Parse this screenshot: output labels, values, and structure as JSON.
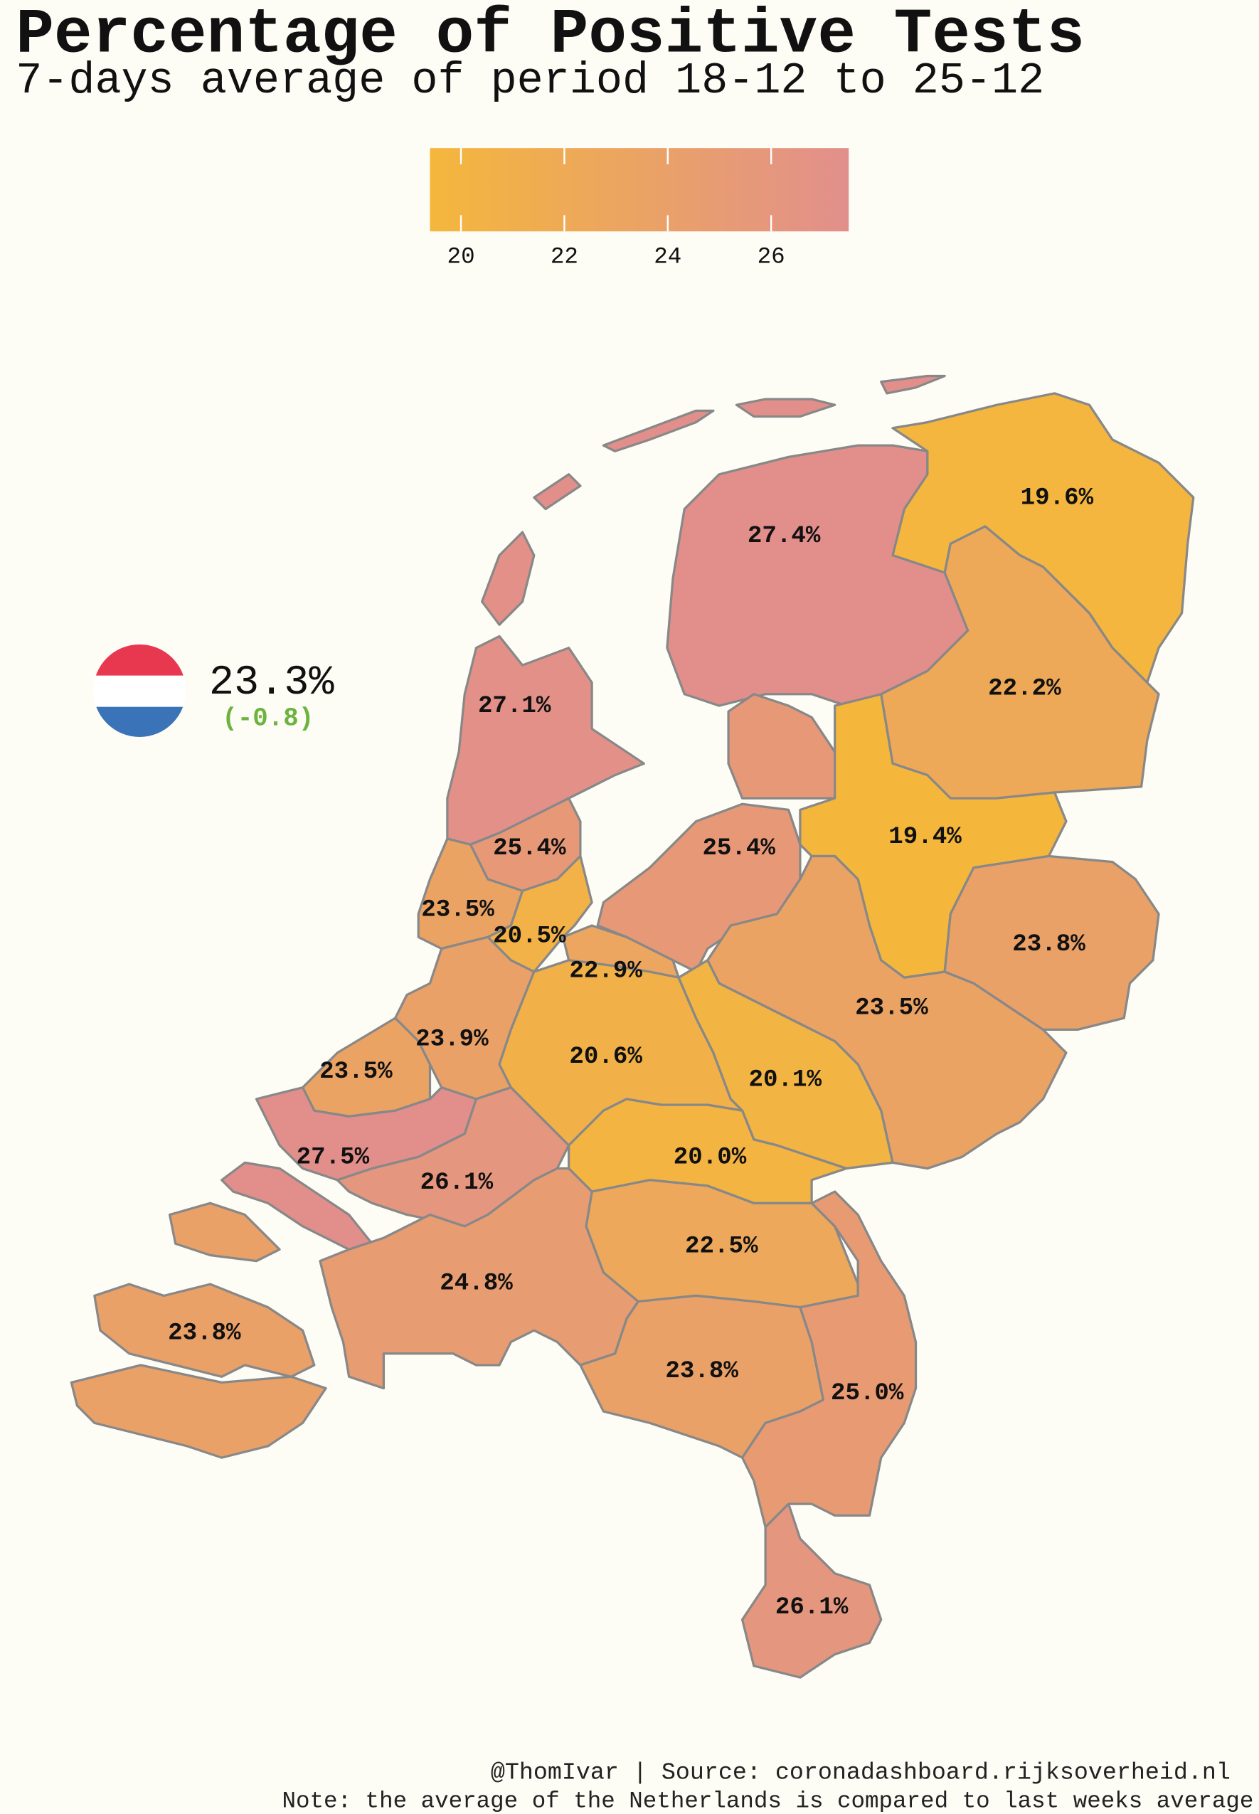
{
  "chart_data": {
    "type": "choropleth",
    "title": "Percentage of Positive Tests",
    "subtitle": "7-days average of period 18-12 to 25-12",
    "values": [
      19.6,
      27.4,
      22.2,
      27.1,
      25.4,
      25.4,
      19.4,
      23.5,
      20.5,
      22.9,
      23.8,
      23.5,
      23.9,
      23.5,
      20.6,
      20.1,
      27.5,
      26.1,
      20.0,
      22.5,
      24.8,
      23.8,
      23.8,
      25.0,
      26.1
    ],
    "value_labels": [
      "19.6%",
      "27.4%",
      "22.2%",
      "27.1%",
      "25.4%",
      "25.4%",
      "19.4%",
      "23.5%",
      "20.5%",
      "22.9%",
      "23.8%",
      "23.5%",
      "23.9%",
      "23.5%",
      "20.6%",
      "20.1%",
      "27.5%",
      "26.1%",
      "20.0%",
      "22.5%",
      "24.8%",
      "23.8%",
      "23.8%",
      "25.0%",
      "26.1%"
    ],
    "colorbar": {
      "lim": [
        19.4,
        27.5
      ],
      "ticks": [
        20,
        22,
        24,
        26
      ],
      "colors": [
        "#f4b73c",
        "#e28f8c"
      ]
    },
    "national_label": "23.3%",
    "national_change": "(-0.8)",
    "credit": "@ThomIvar | Source: coronadashboard.rijksoverheid.nl",
    "note": "Note: the average of the Netherlands is compared to last weeks average"
  }
}
